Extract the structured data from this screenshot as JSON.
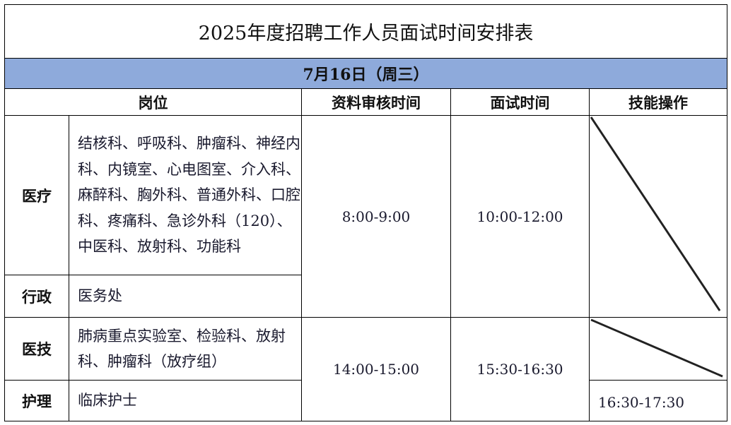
{
  "title": "2025年度招聘工作人员面试时间安排表",
  "date": "7月16日（周三）",
  "headers": {
    "position": "岗位",
    "review_time": "资料审核时间",
    "interview_time": "面试时间",
    "skill_test": "技能操作"
  },
  "rows": [
    {
      "category": "医疗",
      "departments": "结核科、呼吸科、肿瘤科、神经内科、内镜室、心电图室、介入科、麻醉科、胸外科、普通外科、口腔科、疼痛科、急诊外科（120）、中医科、放射科、功能科"
    },
    {
      "category": "行政",
      "departments": "医务处"
    },
    {
      "category": "医技",
      "departments": "肺病重点实验室、检验科、放射科、肿瘤科（放疗组）"
    },
    {
      "category": "护理",
      "departments": "临床护士"
    }
  ],
  "group1": {
    "review_time": "8:00-9:00",
    "interview_time": "10:00-12:00"
  },
  "group2": {
    "review_time": "14:00-15:00",
    "interview_time": "15:30-16:30",
    "nursing_skill_time": "16:30-17:30"
  },
  "header_fill": "#8eaadb"
}
